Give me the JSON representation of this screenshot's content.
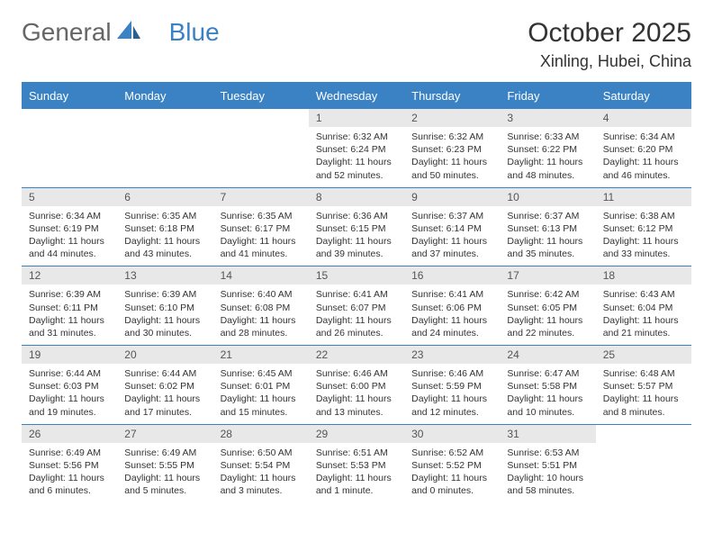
{
  "logo": {
    "text1": "General",
    "text2": "Blue"
  },
  "title": "October 2025",
  "location": "Xinling, Hubei, China",
  "colors": {
    "header_bg": "#3b82c4",
    "header_text": "#ffffff",
    "daynum_bg": "#e8e8e8",
    "border": "#3b82c4",
    "logo_gray": "#666666",
    "logo_blue": "#3b82c4"
  },
  "weekdays": [
    "Sunday",
    "Monday",
    "Tuesday",
    "Wednesday",
    "Thursday",
    "Friday",
    "Saturday"
  ],
  "weeks": [
    [
      {},
      {},
      {},
      {
        "d": "1",
        "sr": "6:32 AM",
        "ss": "6:24 PM",
        "dl": "11 hours and 52 minutes."
      },
      {
        "d": "2",
        "sr": "6:32 AM",
        "ss": "6:23 PM",
        "dl": "11 hours and 50 minutes."
      },
      {
        "d": "3",
        "sr": "6:33 AM",
        "ss": "6:22 PM",
        "dl": "11 hours and 48 minutes."
      },
      {
        "d": "4",
        "sr": "6:34 AM",
        "ss": "6:20 PM",
        "dl": "11 hours and 46 minutes."
      }
    ],
    [
      {
        "d": "5",
        "sr": "6:34 AM",
        "ss": "6:19 PM",
        "dl": "11 hours and 44 minutes."
      },
      {
        "d": "6",
        "sr": "6:35 AM",
        "ss": "6:18 PM",
        "dl": "11 hours and 43 minutes."
      },
      {
        "d": "7",
        "sr": "6:35 AM",
        "ss": "6:17 PM",
        "dl": "11 hours and 41 minutes."
      },
      {
        "d": "8",
        "sr": "6:36 AM",
        "ss": "6:15 PM",
        "dl": "11 hours and 39 minutes."
      },
      {
        "d": "9",
        "sr": "6:37 AM",
        "ss": "6:14 PM",
        "dl": "11 hours and 37 minutes."
      },
      {
        "d": "10",
        "sr": "6:37 AM",
        "ss": "6:13 PM",
        "dl": "11 hours and 35 minutes."
      },
      {
        "d": "11",
        "sr": "6:38 AM",
        "ss": "6:12 PM",
        "dl": "11 hours and 33 minutes."
      }
    ],
    [
      {
        "d": "12",
        "sr": "6:39 AM",
        "ss": "6:11 PM",
        "dl": "11 hours and 31 minutes."
      },
      {
        "d": "13",
        "sr": "6:39 AM",
        "ss": "6:10 PM",
        "dl": "11 hours and 30 minutes."
      },
      {
        "d": "14",
        "sr": "6:40 AM",
        "ss": "6:08 PM",
        "dl": "11 hours and 28 minutes."
      },
      {
        "d": "15",
        "sr": "6:41 AM",
        "ss": "6:07 PM",
        "dl": "11 hours and 26 minutes."
      },
      {
        "d": "16",
        "sr": "6:41 AM",
        "ss": "6:06 PM",
        "dl": "11 hours and 24 minutes."
      },
      {
        "d": "17",
        "sr": "6:42 AM",
        "ss": "6:05 PM",
        "dl": "11 hours and 22 minutes."
      },
      {
        "d": "18",
        "sr": "6:43 AM",
        "ss": "6:04 PM",
        "dl": "11 hours and 21 minutes."
      }
    ],
    [
      {
        "d": "19",
        "sr": "6:44 AM",
        "ss": "6:03 PM",
        "dl": "11 hours and 19 minutes."
      },
      {
        "d": "20",
        "sr": "6:44 AM",
        "ss": "6:02 PM",
        "dl": "11 hours and 17 minutes."
      },
      {
        "d": "21",
        "sr": "6:45 AM",
        "ss": "6:01 PM",
        "dl": "11 hours and 15 minutes."
      },
      {
        "d": "22",
        "sr": "6:46 AM",
        "ss": "6:00 PM",
        "dl": "11 hours and 13 minutes."
      },
      {
        "d": "23",
        "sr": "6:46 AM",
        "ss": "5:59 PM",
        "dl": "11 hours and 12 minutes."
      },
      {
        "d": "24",
        "sr": "6:47 AM",
        "ss": "5:58 PM",
        "dl": "11 hours and 10 minutes."
      },
      {
        "d": "25",
        "sr": "6:48 AM",
        "ss": "5:57 PM",
        "dl": "11 hours and 8 minutes."
      }
    ],
    [
      {
        "d": "26",
        "sr": "6:49 AM",
        "ss": "5:56 PM",
        "dl": "11 hours and 6 minutes."
      },
      {
        "d": "27",
        "sr": "6:49 AM",
        "ss": "5:55 PM",
        "dl": "11 hours and 5 minutes."
      },
      {
        "d": "28",
        "sr": "6:50 AM",
        "ss": "5:54 PM",
        "dl": "11 hours and 3 minutes."
      },
      {
        "d": "29",
        "sr": "6:51 AM",
        "ss": "5:53 PM",
        "dl": "11 hours and 1 minute."
      },
      {
        "d": "30",
        "sr": "6:52 AM",
        "ss": "5:52 PM",
        "dl": "11 hours and 0 minutes."
      },
      {
        "d": "31",
        "sr": "6:53 AM",
        "ss": "5:51 PM",
        "dl": "10 hours and 58 minutes."
      },
      {}
    ]
  ],
  "labels": {
    "sunrise": "Sunrise:",
    "sunset": "Sunset:",
    "daylight": "Daylight:"
  }
}
